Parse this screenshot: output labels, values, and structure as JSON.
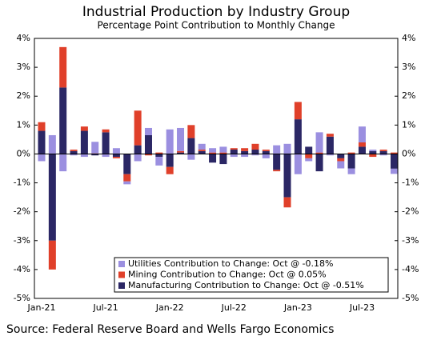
{
  "chart_data": {
    "type": "stacked_bar",
    "title": "Industrial Production by Industry Group",
    "subtitle": "Percentage Point Contribution to Monthly Change",
    "source": "Source: Federal Reserve Board and Wells Fargo Economics",
    "categories": [
      "Jan-21",
      null,
      null,
      null,
      null,
      null,
      "Jul-21",
      null,
      null,
      null,
      null,
      null,
      "Jan-22",
      null,
      null,
      null,
      null,
      null,
      "Jul-22",
      null,
      null,
      null,
      null,
      null,
      "Jan-23",
      null,
      null,
      null,
      null,
      null,
      "Jul-23",
      null,
      null,
      null
    ],
    "series": [
      {
        "name": "Utilities Contribution to Change: Oct @ -0.18%",
        "color": "#9b8fe0",
        "values": [
          -0.25,
          0.65,
          -0.6,
          -0.05,
          -0.1,
          0.4,
          -0.1,
          0.2,
          -0.1,
          -0.25,
          0.25,
          -0.3,
          0.85,
          0.8,
          -0.2,
          0.2,
          0.15,
          0.2,
          -0.1,
          -0.1,
          -0.05,
          -0.15,
          0.3,
          0.35,
          -0.7,
          -0.1,
          0.7,
          -0.05,
          -0.25,
          -0.2,
          0.55,
          0.05,
          -0.05,
          -0.18
        ]
      },
      {
        "name": "Mining Contribution to Change: Oct @ 0.05%",
        "color": "#e0402a",
        "values": [
          0.3,
          -1.0,
          1.4,
          0.05,
          0.15,
          0.02,
          0.1,
          -0.05,
          -0.25,
          1.2,
          -0.05,
          0.05,
          -0.25,
          0.05,
          0.45,
          0.05,
          0.05,
          0.05,
          0.05,
          0.1,
          0.2,
          0.05,
          -0.05,
          -0.35,
          0.6,
          -0.15,
          0.05,
          0.1,
          -0.1,
          0.05,
          0.15,
          -0.1,
          0.05,
          0.05
        ]
      },
      {
        "name": "Manufacturing Contribution to Change: Oct @ -0.51%",
        "color": "#2b2765",
        "values": [
          0.8,
          -3.0,
          2.3,
          0.1,
          0.8,
          -0.05,
          0.75,
          -0.1,
          -0.7,
          0.3,
          0.65,
          -0.1,
          -0.45,
          0.05,
          0.55,
          0.1,
          -0.3,
          -0.35,
          0.15,
          0.1,
          0.15,
          0.1,
          -0.55,
          -1.5,
          1.2,
          0.25,
          -0.6,
          0.6,
          -0.15,
          -0.5,
          0.25,
          0.1,
          0.1,
          -0.51
        ]
      }
    ],
    "ylim": [
      -5,
      4
    ],
    "yticks": [
      {
        "value": -5,
        "label": "-5%"
      },
      {
        "value": -4,
        "label": "-4%"
      },
      {
        "value": -3,
        "label": "-3%"
      },
      {
        "value": -2,
        "label": "-2%"
      },
      {
        "value": -1,
        "label": "-1%"
      },
      {
        "value": 0,
        "label": "0%"
      },
      {
        "value": 1,
        "label": "1%"
      },
      {
        "value": 2,
        "label": "2%"
      },
      {
        "value": 3,
        "label": "3%"
      },
      {
        "value": 4,
        "label": "4%"
      }
    ],
    "legend": "lower right",
    "grid": false
  }
}
